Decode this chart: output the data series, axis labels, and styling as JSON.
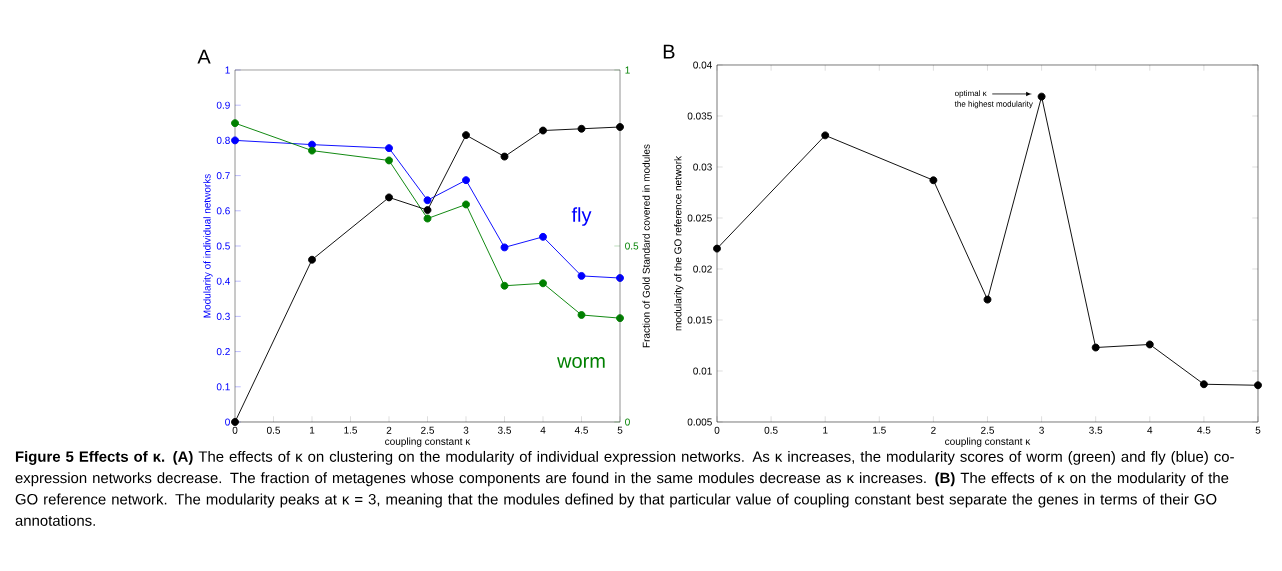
{
  "chart_data": [
    {
      "type": "line",
      "title": "A",
      "xlabel": "coupling constant κ",
      "ylabel": "Modularity of individual networks",
      "y2label": "Fraction of Gold Standard covered in modules",
      "x": [
        0,
        1,
        2,
        2.5,
        3,
        3.5,
        4,
        4.5,
        5
      ],
      "series": [
        {
          "name": "fly",
          "color": "#0000ff",
          "values": [
            0.8,
            0.788,
            0.778,
            0.63,
            0.687,
            0.496,
            0.526,
            0.415,
            0.409
          ]
        },
        {
          "name": "worm",
          "color": "#008000",
          "values": [
            0.849,
            0.771,
            0.743,
            0.578,
            0.618,
            0.387,
            0.394,
            0.304,
            0.295
          ]
        },
        {
          "color": "#000000",
          "axis": "y2",
          "values": [
            0,
            0.461,
            0.638,
            0.602,
            0.815,
            0.754,
            0.828,
            0.833,
            0.838
          ]
        }
      ],
      "xlim": [
        0,
        5
      ],
      "xticks": [
        0,
        0.5,
        1,
        1.5,
        2,
        2.5,
        3,
        3.5,
        4,
        4.5,
        5
      ],
      "ylim": [
        0,
        1
      ],
      "yticks": [
        0,
        0.1,
        0.2,
        0.3,
        0.4,
        0.5,
        0.6,
        0.7,
        0.8,
        0.9,
        1
      ],
      "y2lim": [
        0,
        1
      ],
      "y2ticks": [
        0,
        0.5,
        1
      ],
      "marker": "circle",
      "line_style": "solid",
      "grid": false,
      "legend": false,
      "annotations": [
        "**Figure 5 Effects of κ. (A)** The effects of κ on clustering on the modularity of individual expression networks. As κ increases, the modularity scores of worm (green) and fly (blue) co-expression networks decrease. The fraction of metagenes whose components are found in the same modules decrease as κ increases. **(B)** The effects of κ on the modularity of the GO reference network. The modularity peaks at κ = 3, meaning that the modules defined by that particular value of coupling constant best separate the genes in terms of their GO annotations."
      ]
    },
    {
      "type": "line",
      "title": "B",
      "xlabel": "coupling constant κ",
      "ylabel": "modularity of the GO reference network",
      "x": [
        0,
        1,
        2,
        2.5,
        3,
        3.5,
        4,
        4.5,
        5
      ],
      "series": [
        {
          "color": "#000000",
          "values": [
            0.022,
            0.0331,
            0.0287,
            0.017,
            0.0369,
            0.0123,
            0.0126,
            0.0087,
            0.0086
          ]
        }
      ],
      "xlim": [
        0,
        5
      ],
      "xticks": [
        0,
        0.5,
        1,
        1.5,
        2,
        2.5,
        3,
        3.5,
        4,
        4.5,
        5
      ],
      "ylim": [
        0.005,
        0.04
      ],
      "yticks": [
        0.005,
        0.01,
        0.015,
        0.02,
        0.025,
        0.03,
        0.035,
        0.04
      ],
      "marker": "circle",
      "line_style": "solid",
      "grid": false,
      "legend": false,
      "annotations": [
        "optimal κ",
        "the highest modularity"
      ]
    }
  ]
}
